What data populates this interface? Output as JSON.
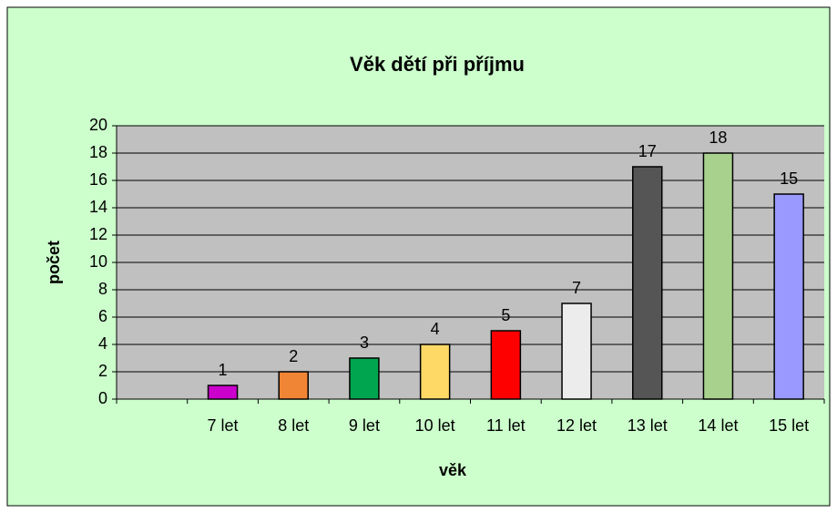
{
  "chart_data": {
    "type": "bar",
    "title": "Věk dětí při příjmu",
    "x_label": "věk",
    "y_label": "počet",
    "categories": [
      null,
      "7 let",
      "8 let",
      "9 let",
      "10 let",
      "11 let",
      "12 let",
      "13 let",
      "14 let",
      "15 let"
    ],
    "values": [
      null,
      1,
      2,
      3,
      4,
      5,
      7,
      17,
      18,
      15
    ],
    "colors": [
      "#cccccc",
      "#cc00cc",
      "#f08535",
      "#00a550",
      "#ffd966",
      "#ff0000",
      "#ececec",
      "#555555",
      "#a9d18e",
      "#9999ff"
    ],
    "ylim": [
      0,
      20
    ],
    "yticks": [
      0,
      2,
      4,
      6,
      8,
      10,
      12,
      14,
      16,
      18,
      20
    ],
    "grid": true
  }
}
